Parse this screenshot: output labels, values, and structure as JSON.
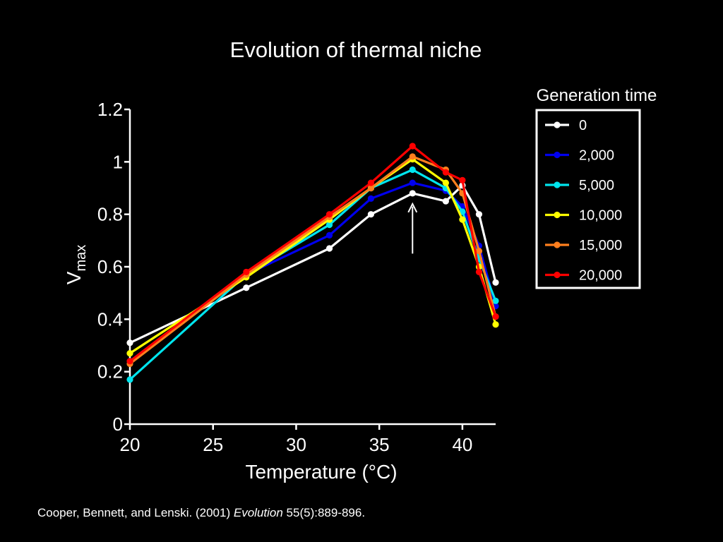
{
  "chart_data": {
    "type": "line",
    "title": "Evolution of thermal niche",
    "xlabel": "Temperature (°C)",
    "ylabel": {
      "main": "V",
      "sub": "max"
    },
    "xlim": [
      20,
      42
    ],
    "ylim": [
      0,
      1.2
    ],
    "xticks": [
      20,
      25,
      30,
      35,
      40
    ],
    "xtick_labels": [
      "20",
      "25",
      "30",
      "35",
      "40"
    ],
    "yticks": [
      0,
      0.2,
      0.4,
      0.6,
      0.8,
      1.0,
      1.2
    ],
    "ytick_labels": [
      "0",
      "0.2",
      "0.4",
      "0.6",
      "0.8",
      "1",
      "1.2"
    ],
    "legend": {
      "title": "Generation time",
      "placement": "right"
    },
    "annotation": {
      "type": "arrow",
      "x": 37,
      "y_from": 0.65,
      "y_to": 0.84
    },
    "series": [
      {
        "name": "0",
        "color": "#ffffff",
        "x": [
          20,
          27,
          32,
          34.5,
          37,
          39,
          40,
          41,
          42
        ],
        "y": [
          0.31,
          0.52,
          0.67,
          0.8,
          0.88,
          0.85,
          0.91,
          0.8,
          0.54
        ]
      },
      {
        "name": "2,000",
        "color": "#0000ee",
        "x": [
          20,
          27,
          32,
          34.5,
          37,
          39,
          40,
          41,
          42
        ],
        "y": [
          0.24,
          0.57,
          0.72,
          0.86,
          0.92,
          0.89,
          0.83,
          0.68,
          0.45
        ]
      },
      {
        "name": "5,000",
        "color": "#00e5ee",
        "x": [
          20,
          27,
          32,
          34.5,
          37,
          39,
          40,
          41,
          42
        ],
        "y": [
          0.17,
          0.57,
          0.76,
          0.9,
          0.97,
          0.9,
          0.81,
          0.63,
          0.47
        ]
      },
      {
        "name": "10,000",
        "color": "#ffff00",
        "x": [
          20,
          27,
          32,
          34.5,
          37,
          39,
          40,
          41,
          42
        ],
        "y": [
          0.27,
          0.56,
          0.78,
          0.9,
          1.01,
          0.92,
          0.78,
          0.6,
          0.38
        ]
      },
      {
        "name": "15,000",
        "color": "#ff7f1e",
        "x": [
          20,
          27,
          32,
          34.5,
          37,
          39,
          40,
          41,
          42
        ],
        "y": [
          0.23,
          0.57,
          0.79,
          0.9,
          1.02,
          0.97,
          0.88,
          0.66,
          0.41
        ]
      },
      {
        "name": "20,000",
        "color": "#ff0000",
        "x": [
          20,
          27,
          32,
          34.5,
          37,
          39,
          40,
          41,
          42
        ],
        "y": [
          0.24,
          0.58,
          0.8,
          0.92,
          1.06,
          0.96,
          0.93,
          0.58,
          0.41
        ]
      }
    ]
  },
  "citation": {
    "authors": "Cooper, Bennett, and Lenski. (2001)",
    "journal": "Evolution",
    "details": "55(5):889-896."
  }
}
